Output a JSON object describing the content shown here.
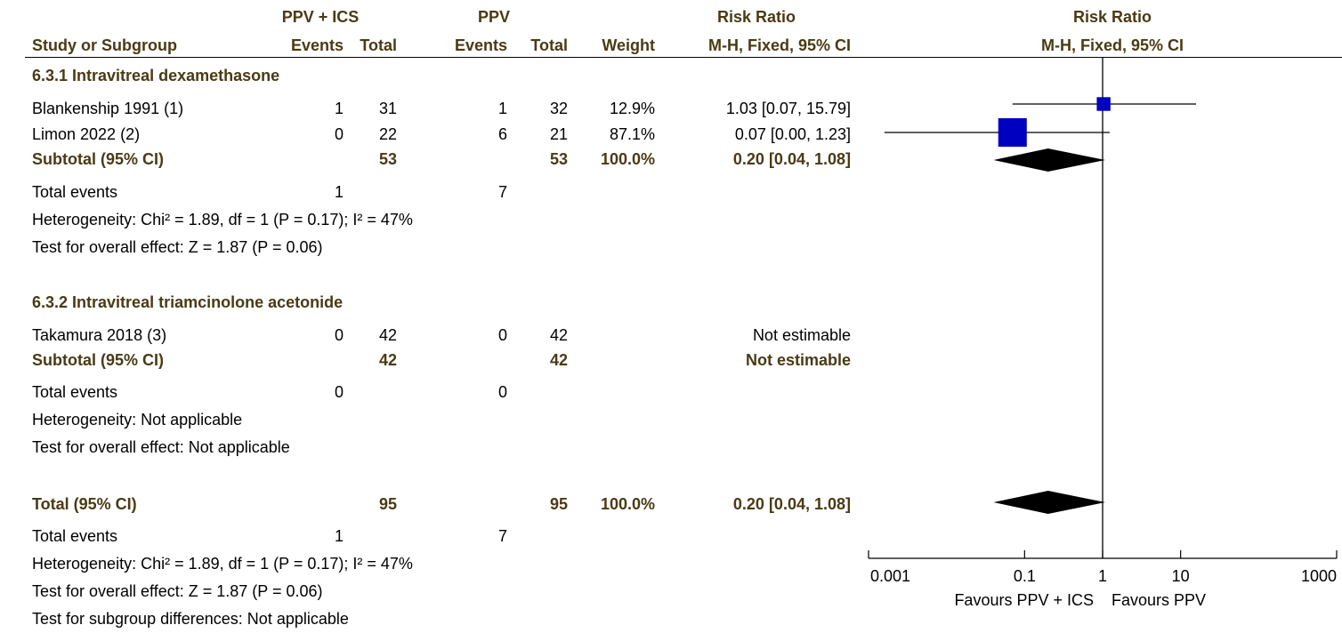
{
  "header": {
    "group1_label": "PPV + ICS",
    "group2_label": "PPV",
    "rr_label": "Risk Ratio",
    "plot_rr_label": "Risk Ratio",
    "study_col": "Study or Subgroup",
    "events_label": "Events",
    "total_label": "Total",
    "weight_label": "Weight",
    "method_label": "M-H, Fixed, 95% CI",
    "plot_method_label": "M-H, Fixed, 95% CI"
  },
  "subgroup1": {
    "title": "6.3.1 Intravitreal dexamethasone",
    "studies": [
      {
        "name": "Blankenship 1991 (1)",
        "e1": "1",
        "t1": "31",
        "e2": "1",
        "t2": "32",
        "weight": "12.9%",
        "ci": "1.03 [0.07, 15.79]"
      },
      {
        "name": "Limon 2022 (2)",
        "e1": "0",
        "t1": "22",
        "e2": "6",
        "t2": "21",
        "weight": "87.1%",
        "ci": "0.07 [0.00, 1.23]"
      }
    ],
    "subtotal": {
      "label": "Subtotal (95% CI)",
      "t1": "53",
      "t2": "53",
      "weight": "100.0%",
      "ci": "0.20 [0.04, 1.08]"
    },
    "events": {
      "label": "Total events",
      "e1": "1",
      "e2": "7"
    },
    "heterogeneity": "Heterogeneity: Chi² = 1.89, df = 1 (P = 0.17); I² = 47%",
    "overall": "Test for overall effect: Z = 1.87 (P = 0.06)"
  },
  "subgroup2": {
    "title": "6.3.2 Intravitreal triamcinolone acetonide",
    "studies": [
      {
        "name": "Takamura 2018 (3)",
        "e1": "0",
        "t1": "42",
        "e2": "0",
        "t2": "42",
        "weight": "",
        "ci": "Not estimable"
      }
    ],
    "subtotal": {
      "label": "Subtotal (95% CI)",
      "t1": "42",
      "t2": "42",
      "weight": "",
      "ci": "Not estimable"
    },
    "events": {
      "label": "Total events",
      "e1": "0",
      "e2": "0"
    },
    "heterogeneity": "Heterogeneity: Not applicable",
    "overall": "Test for overall effect: Not applicable"
  },
  "total": {
    "label": "Total (95% CI)",
    "t1": "95",
    "t2": "95",
    "weight": "100.0%",
    "ci": "0.20 [0.04, 1.08]",
    "events": {
      "label": "Total events",
      "e1": "1",
      "e2": "7"
    },
    "heterogeneity": "Heterogeneity: Chi² = 1.89, df = 1 (P = 0.17); I² = 47%",
    "overall": "Test for overall effect: Z = 1.87 (P = 0.06)",
    "subgroup_diff": "Test for subgroup differences: Not applicable"
  },
  "chart_data": {
    "type": "forest",
    "x_scale": "log",
    "xlim": [
      0.001,
      1000
    ],
    "tick_values": [
      0.001,
      0.1,
      1,
      10,
      1000
    ],
    "tick_labels": [
      "0.001",
      "0.1",
      "1",
      "10",
      "1000"
    ],
    "favours_left": "Favours PPV + ICS",
    "favours_right": "Favours PPV",
    "studies": [
      {
        "name": "Blankenship 1991 (1)",
        "rr": 1.03,
        "lo": 0.07,
        "hi": 15.79,
        "weight": 12.9
      },
      {
        "name": "Limon 2022 (2)",
        "rr": 0.07,
        "lo": 0.0,
        "hi": 1.23,
        "weight": 87.1
      }
    ],
    "summaries": [
      {
        "name": "Subtotal (95% CI)",
        "rr": 0.2,
        "lo": 0.04,
        "hi": 1.08
      },
      {
        "name": "Total (95% CI)",
        "rr": 0.2,
        "lo": 0.04,
        "hi": 1.08
      }
    ],
    "colors": {
      "square": "#0000c0",
      "diamond": "#000000",
      "line": "#000000"
    }
  }
}
